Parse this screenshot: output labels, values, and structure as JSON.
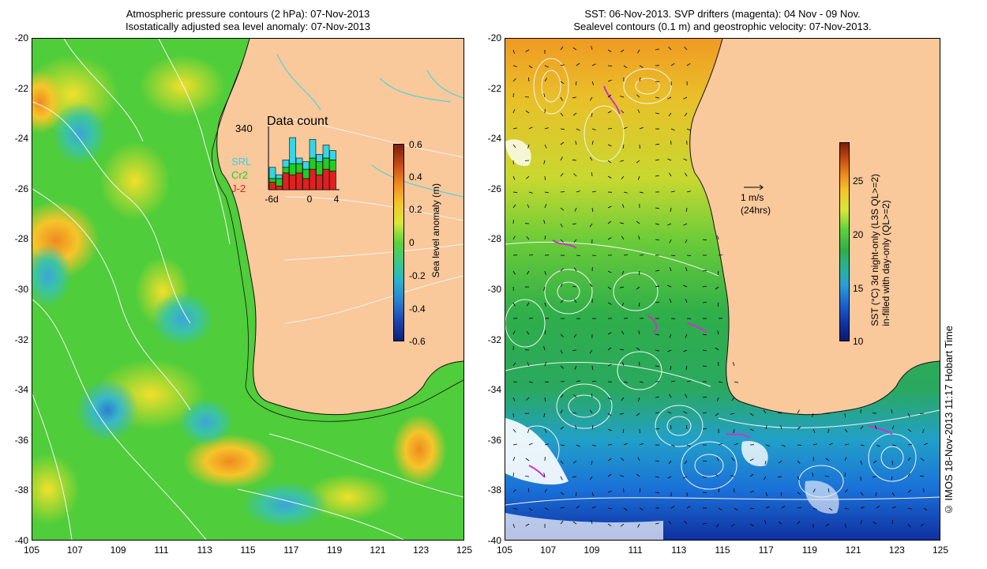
{
  "left_panel": {
    "title_line1": "Atmospheric pressure contours (2 hPa): 07-Nov-2013",
    "title_line2": "Isostatically adjusted sea level anomaly: 07-Nov-2013",
    "colorbar": {
      "label": "Sea level anomaly (m)",
      "ticks": [
        "0.6",
        "0.4",
        "0.2",
        "0",
        "-0.2",
        "-0.4",
        "-0.6"
      ]
    },
    "inset": {
      "title": "Data count",
      "ymax_label": "340",
      "x_ticks": [
        "-6d",
        "0",
        "4"
      ],
      "legend": [
        {
          "name": "SRL",
          "color": "#33d6e6"
        },
        {
          "name": "Cr2",
          "color": "#22cc22"
        },
        {
          "name": "J-2",
          "color": "#e02020"
        }
      ],
      "bars": [
        {
          "day": -6,
          "J-2": 40,
          "Cr2": 20,
          "SRL": 60
        },
        {
          "day": -5,
          "J-2": 20,
          "Cr2": 40,
          "SRL": 20
        },
        {
          "day": -4,
          "J-2": 90,
          "Cr2": 30,
          "SRL": 40
        },
        {
          "day": -3,
          "J-2": 80,
          "Cr2": 60,
          "SRL": 140
        },
        {
          "day": -2,
          "J-2": 90,
          "Cr2": 50,
          "SRL": 30
        },
        {
          "day": -1,
          "J-2": 60,
          "Cr2": 50,
          "SRL": 40
        },
        {
          "day": 0,
          "J-2": 110,
          "Cr2": 60,
          "SRL": 100
        },
        {
          "day": 1,
          "J-2": 80,
          "Cr2": 70,
          "SRL": 40
        },
        {
          "day": 2,
          "J-2": 110,
          "Cr2": 60,
          "SRL": 70
        },
        {
          "day": 3,
          "J-2": 100,
          "Cr2": 60,
          "SRL": 50
        }
      ]
    }
  },
  "right_panel": {
    "title_line1": "SST: 06-Nov-2013. SVP drifters (magenta): 04 Nov - 09 Nov.",
    "title_line2": "Sealevel contours (0.1 m) and geostrophic velocity: 07-Nov-2013.",
    "colorbar": {
      "label_line1": "SST (°C) 3d night-only (L3S QL>=2)",
      "label_line2": "in-filled with day-only (QL>=2)",
      "ticks": [
        "25",
        "20",
        "15",
        "10"
      ]
    },
    "velocity_label_line1": "1 m/s",
    "velocity_label_line2": "(24hrs)"
  },
  "axes": {
    "x_ticks": [
      "105",
      "107",
      "109",
      "111",
      "113",
      "115",
      "117",
      "119",
      "121",
      "123",
      "125"
    ],
    "y_ticks": [
      "-20",
      "-22",
      "-24",
      "-26",
      "-28",
      "-30",
      "-32",
      "-34",
      "-36",
      "-38",
      "-40"
    ]
  },
  "credit": "© IMOS 18-Nov-2013 11:17 Hobart Time",
  "colors": {
    "land": "#f9c89b",
    "sla_ocean": "#4fcd3a",
    "sst_ocean": "#2fae4a"
  }
}
